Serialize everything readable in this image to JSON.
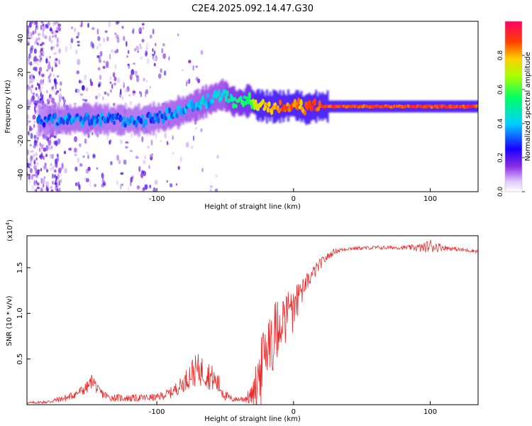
{
  "figure_title": "C2E4.2025.092.14.47.G30",
  "chart_data": [
    {
      "type": "heatmap",
      "name": "spectrogram",
      "xlabel": "Height of straight line (km)",
      "ylabel": "Frequency (Hz)",
      "xlim": [
        -195,
        135
      ],
      "ylim": [
        -50,
        50
      ],
      "xticks": [
        -100,
        0,
        100
      ],
      "yticks": [
        -40,
        -20,
        0,
        20,
        40
      ],
      "colorbar": {
        "label": "Normalized spectral amplitude",
        "range": [
          0,
          1
        ],
        "ticks": [
          0.0,
          0.2,
          0.4,
          0.6,
          0.8
        ]
      },
      "ridge": {
        "x": [
          -185,
          -170,
          -150,
          -130,
          -110,
          -95,
          -80,
          -65,
          -52,
          -45,
          -38,
          -32,
          -28,
          -20,
          -10,
          0,
          5,
          8,
          15,
          30,
          60,
          100,
          135
        ],
        "freq": [
          -8,
          -8,
          -7,
          -8,
          -8,
          -6,
          -2,
          3,
          7,
          3,
          2,
          4,
          1,
          0,
          0,
          1,
          0,
          -2,
          0,
          0,
          0,
          0,
          0
        ],
        "amplitude": [
          0.35,
          0.4,
          0.4,
          0.38,
          0.38,
          0.4,
          0.42,
          0.45,
          0.45,
          0.55,
          0.6,
          0.6,
          0.8,
          0.85,
          0.9,
          0.92,
          0.85,
          0.9,
          0.95,
          0.95,
          0.95,
          0.95,
          0.95
        ]
      },
      "noise_region_x": [
        -195,
        -170
      ]
    },
    {
      "type": "line",
      "name": "snr",
      "xlabel": "Height of straight line (km)",
      "ylabel": "SNR (10 * v/v)",
      "scale_label": "(x10",
      "scale_exponent": "4",
      "scale_suffix": ")",
      "xlim": [
        -195,
        135
      ],
      "ylim": [
        0,
        1.85
      ],
      "xticks": [
        -100,
        0,
        100
      ],
      "yticks": [
        0.5,
        1.0,
        1.5
      ],
      "color": "#ee2a2a",
      "envelope": {
        "x": [
          -195,
          -180,
          -165,
          -155,
          -150,
          -147,
          -143,
          -135,
          -120,
          -100,
          -90,
          -80,
          -75,
          -70,
          -65,
          -60,
          -55,
          -50,
          -45,
          -40,
          -35,
          -30,
          -27,
          -22,
          -18,
          -15,
          -10,
          -5,
          0,
          5,
          10,
          15,
          20,
          25,
          30,
          40,
          60,
          80,
          95,
          100,
          110,
          120,
          135
        ],
        "mean": [
          0.02,
          0.03,
          0.08,
          0.15,
          0.2,
          0.28,
          0.15,
          0.08,
          0.07,
          0.08,
          0.13,
          0.24,
          0.35,
          0.38,
          0.36,
          0.3,
          0.22,
          0.1,
          0.06,
          0.06,
          0.07,
          0.1,
          0.25,
          0.5,
          0.75,
          0.82,
          0.9,
          1.05,
          1.15,
          1.25,
          1.35,
          1.45,
          1.55,
          1.62,
          1.68,
          1.71,
          1.72,
          1.72,
          1.72,
          1.74,
          1.72,
          1.7,
          1.68
        ],
        "noise": [
          0.01,
          0.02,
          0.04,
          0.06,
          0.07,
          0.08,
          0.06,
          0.04,
          0.04,
          0.04,
          0.06,
          0.1,
          0.16,
          0.18,
          0.17,
          0.15,
          0.12,
          0.06,
          0.03,
          0.03,
          0.05,
          0.12,
          0.25,
          0.35,
          0.4,
          0.32,
          0.28,
          0.2,
          0.15,
          0.12,
          0.1,
          0.08,
          0.06,
          0.04,
          0.03,
          0.02,
          0.02,
          0.02,
          0.05,
          0.08,
          0.03,
          0.02,
          0.02
        ]
      }
    }
  ]
}
